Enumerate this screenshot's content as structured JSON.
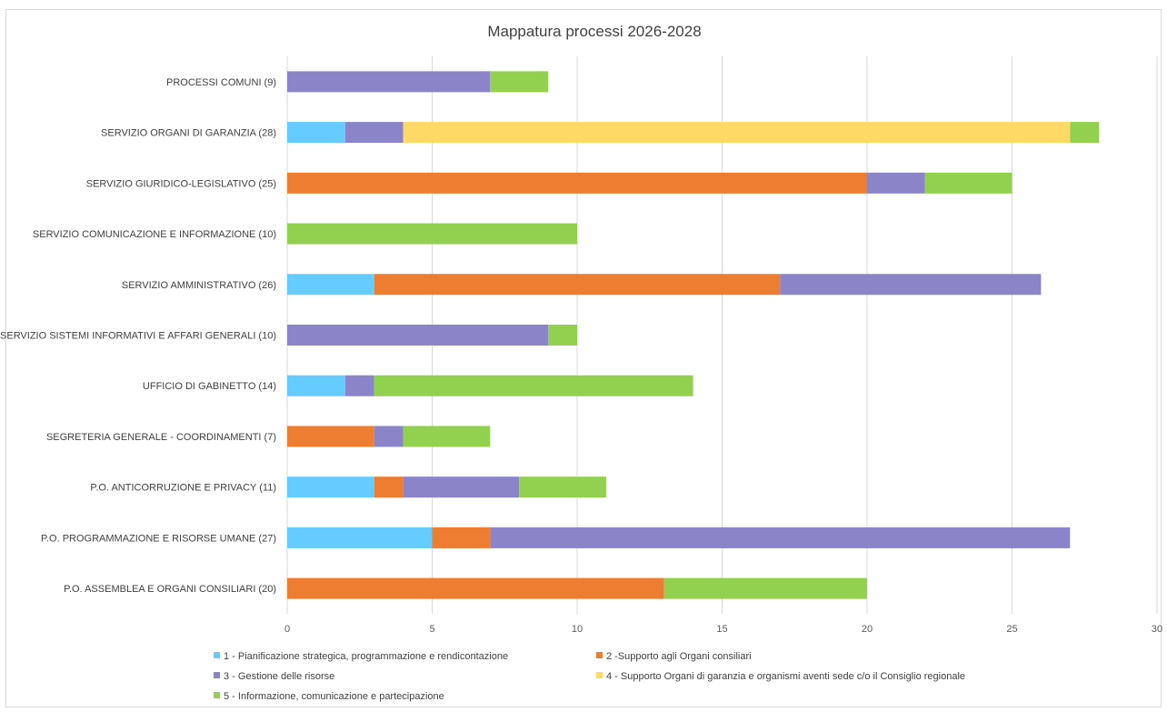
{
  "chart_data": {
    "type": "bar",
    "orientation": "horizontal",
    "stacked": true,
    "title": "Mappatura processi 2026-2028",
    "categories": [
      "PROCESSI COMUNI (9)",
      "SERVIZIO ORGANI DI GARANZIA (28)",
      "SERVIZIO GIURIDICO-LEGISLATIVO (25)",
      "SERVIZIO COMUNICAZIONE E INFORMAZIONE (10)",
      "SERVIZIO AMMINISTRATIVO (26)",
      "SERVIZIO SISTEMI INFORMATIVI E AFFARI GENERALI (10)",
      "UFFICIO DI GABINETTO (14)",
      "SEGRETERIA GENERALE - COORDINAMENTI (7)",
      "P.O. ANTICORRUZIONE E PRIVACY (11)",
      "P.O. PROGRAMMAZIONE E RISORSE UMANE (27)",
      "P.O. ASSEMBLEA E ORGANI CONSILIARI (20)"
    ],
    "series": [
      {
        "name": "1 - Pianificazione strategica, programmazione e rendicontazione",
        "color": "#66CCFF",
        "values": [
          0,
          2,
          0,
          0,
          3,
          0,
          2,
          0,
          3,
          5,
          0
        ]
      },
      {
        "name": "2 -Supporto agli Organi consiliari",
        "color": "#ED7D31",
        "values": [
          0,
          0,
          20,
          0,
          14,
          0,
          0,
          3,
          1,
          2,
          13
        ]
      },
      {
        "name": "3 - Gestione delle risorse",
        "color": "#8B84C8",
        "values": [
          7,
          2,
          2,
          0,
          9,
          9,
          1,
          1,
          4,
          20,
          0
        ]
      },
      {
        "name": "4 - Supporto Organi di garanzia e organismi aventi sede c/o il Consiglio regionale",
        "color": "#FFD966",
        "values": [
          0,
          23,
          0,
          0,
          0,
          0,
          0,
          0,
          0,
          0,
          0
        ]
      },
      {
        "name": "5 - Informazione, comunicazione e partecipazione",
        "color": "#92D050",
        "values": [
          2,
          1,
          3,
          10,
          0,
          1,
          11,
          3,
          3,
          0,
          7
        ]
      }
    ],
    "xlim": [
      0,
      30
    ],
    "xticks": [
      0,
      5,
      10,
      15,
      20,
      25,
      30
    ],
    "grid": true,
    "legend_position": "bottom"
  }
}
